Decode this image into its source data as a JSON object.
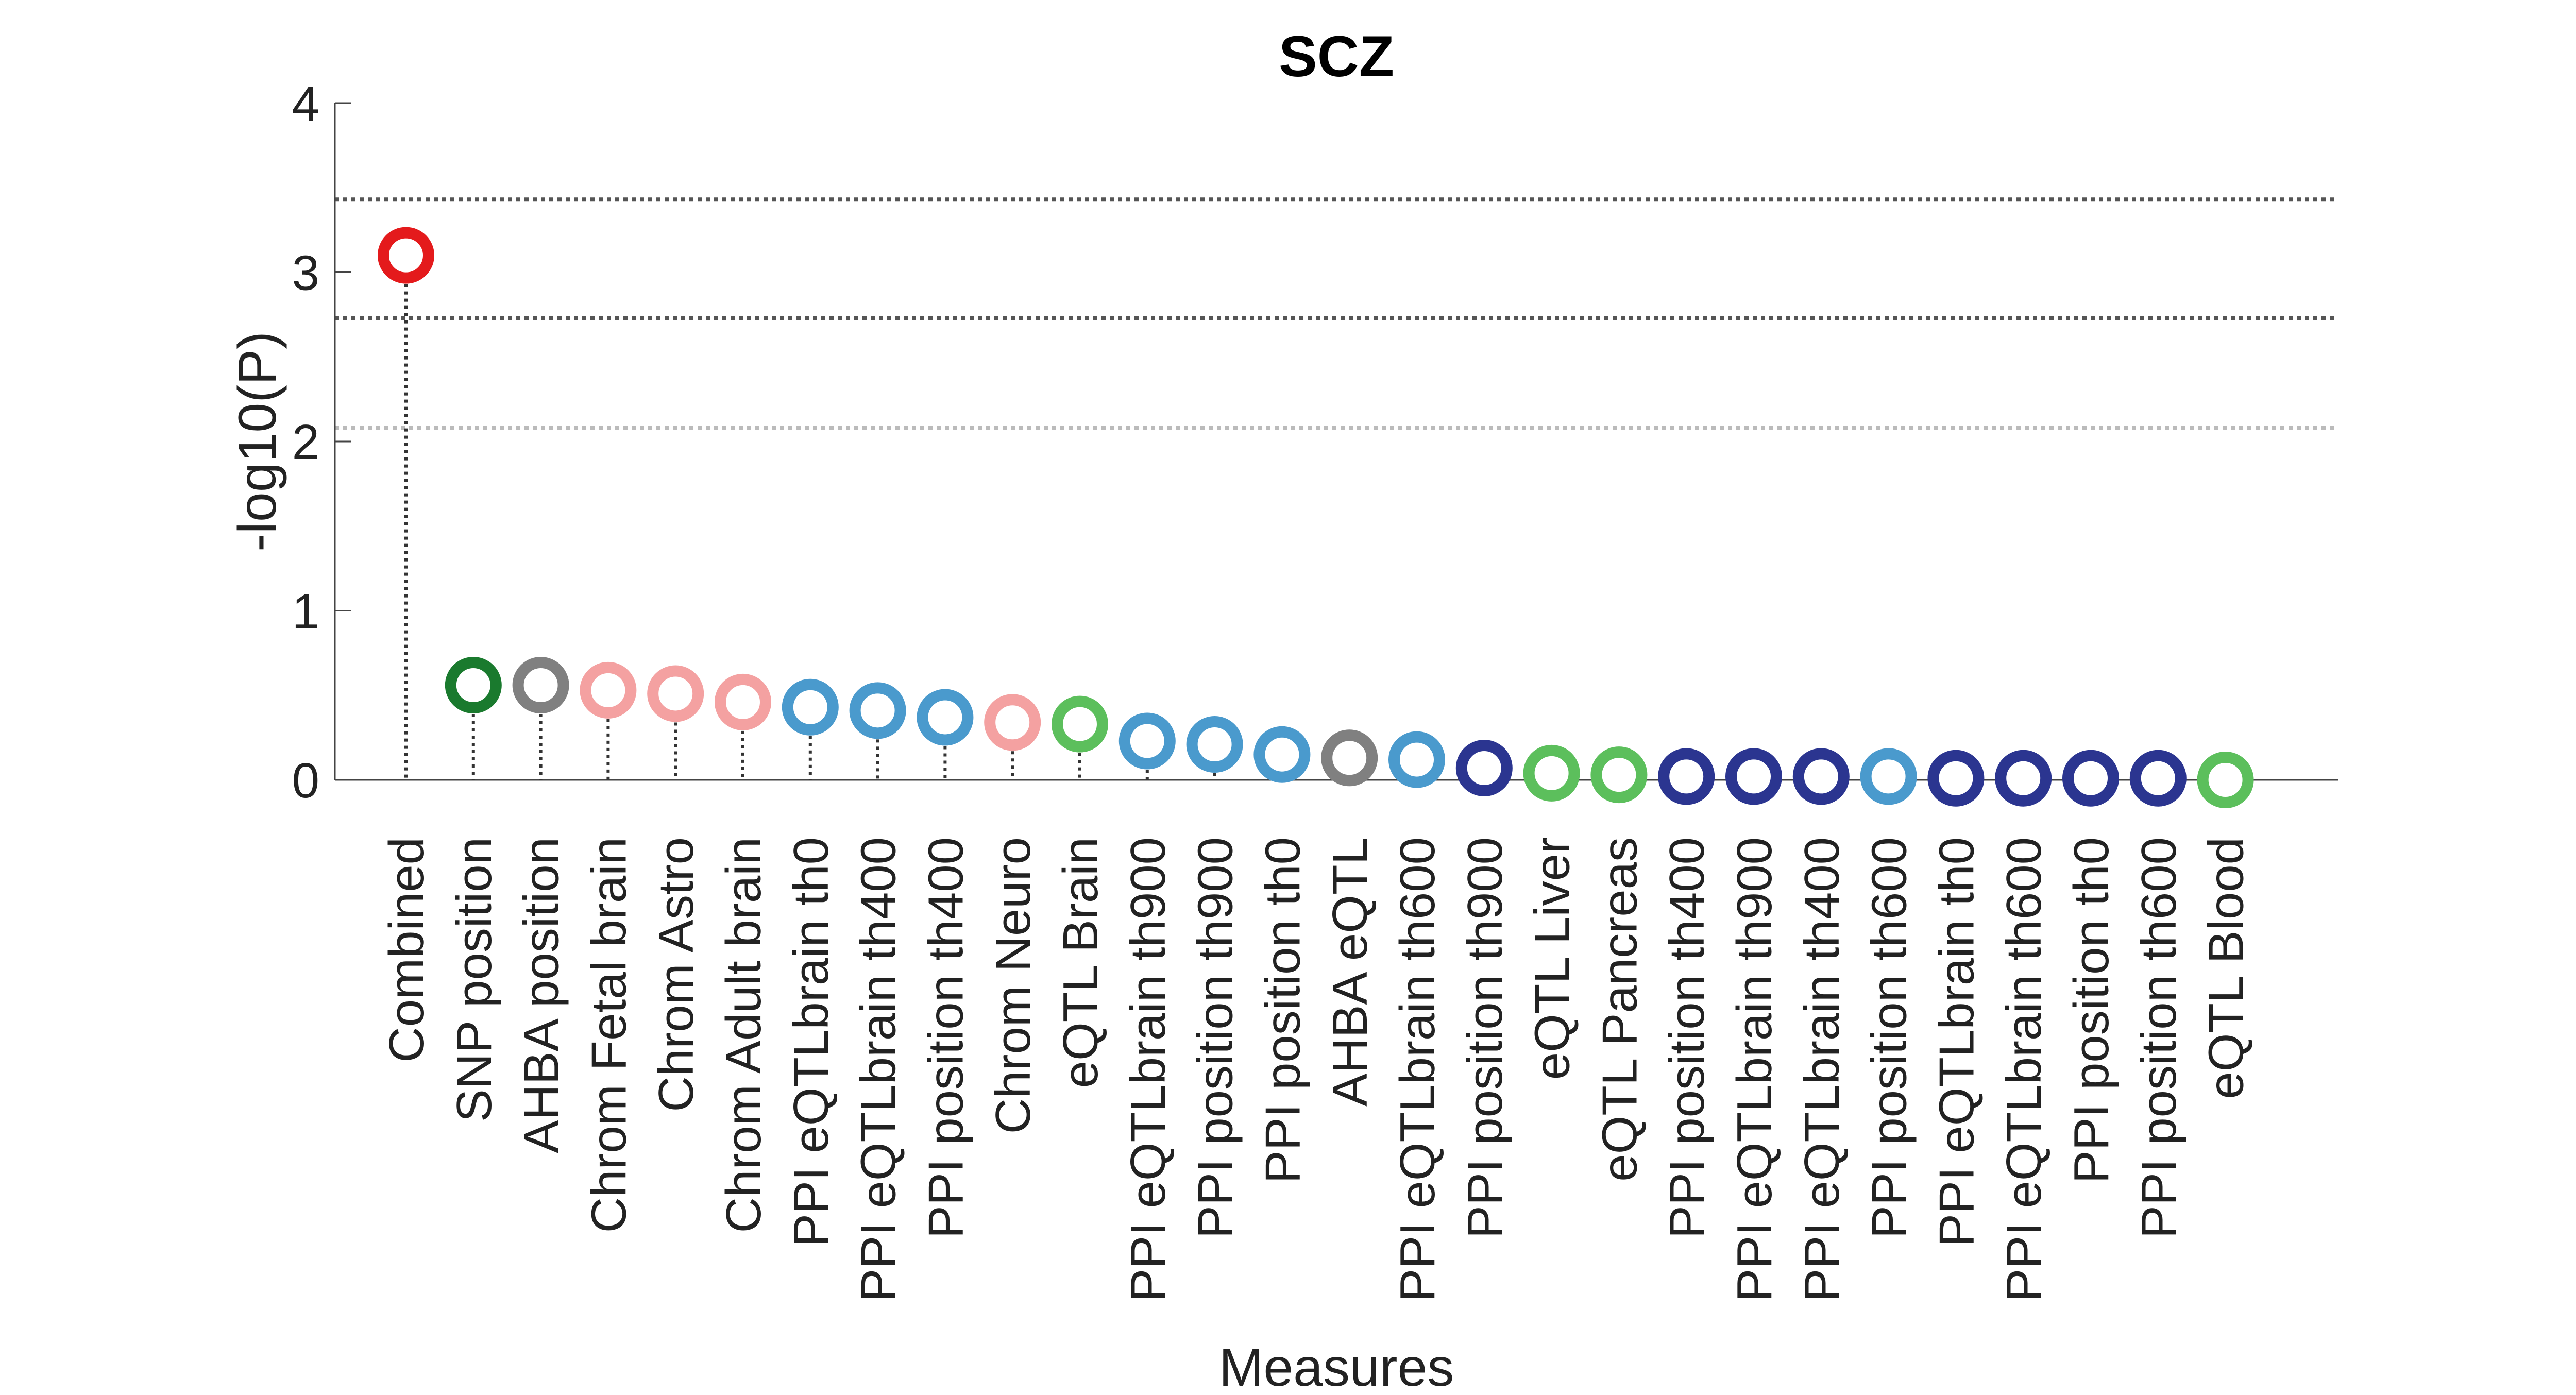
{
  "chart_data": {
    "type": "scatter",
    "title": "SCZ",
    "xlabel": "Measures",
    "ylabel": "-log10(P)",
    "ylim": [
      0,
      4
    ],
    "yticks": [
      "0",
      "1",
      "2",
      "3",
      "4"
    ],
    "grid": false,
    "categories": [
      "Combined",
      "SNP position",
      "AHBA position",
      "Chrom Fetal brain",
      "Chrom Astro",
      "Chrom Adult brain",
      "PPI eQTLbrain th0",
      "PPI eQTLbrain th400",
      "PPI position th400",
      "Chrom Neuro",
      "eQTL Brain",
      "PPI eQTLbrain th900",
      "PPI position th900",
      "PPI position th0",
      "AHBA eQTL",
      "PPI eQTLbrain th600",
      "PPI position th900",
      "eQTL Liver",
      "eQTL Pancreas",
      "PPI position th400",
      "PPI eQTLbrain th900",
      "PPI eQTLbrain th400",
      "PPI position th600",
      "PPI eQTLbrain th0",
      "PPI eQTLbrain th600",
      "PPI position th0",
      "PPI position th600",
      "eQTL Blood"
    ],
    "values": [
      3.1,
      0.56,
      0.56,
      0.53,
      0.51,
      0.46,
      0.43,
      0.41,
      0.37,
      0.34,
      0.33,
      0.23,
      0.21,
      0.15,
      0.13,
      0.12,
      0.07,
      0.04,
      0.03,
      0.02,
      0.02,
      0.02,
      0.02,
      0.01,
      0.01,
      0.01,
      0.01,
      0.0
    ],
    "point_colors": [
      "#e41a1c",
      "#1a7a2e",
      "#808080",
      "#f4a1a1",
      "#f4a1a1",
      "#f4a1a1",
      "#4a9acd",
      "#4a9acd",
      "#4a9acd",
      "#f4a1a1",
      "#5cbf5c",
      "#4a9acd",
      "#4a9acd",
      "#4a9acd",
      "#808080",
      "#4a9acd",
      "#2b3590",
      "#5cbf5c",
      "#5cbf5c",
      "#2b3590",
      "#2b3590",
      "#2b3590",
      "#4a9acd",
      "#2b3590",
      "#2b3590",
      "#2b3590",
      "#2b3590",
      "#5cbf5c"
    ],
    "threshold_lines": [
      {
        "value": 3.43,
        "color": "#555555"
      },
      {
        "value": 2.73,
        "color": "#555555"
      },
      {
        "value": 2.08,
        "color": "#bbbbbb"
      }
    ]
  }
}
